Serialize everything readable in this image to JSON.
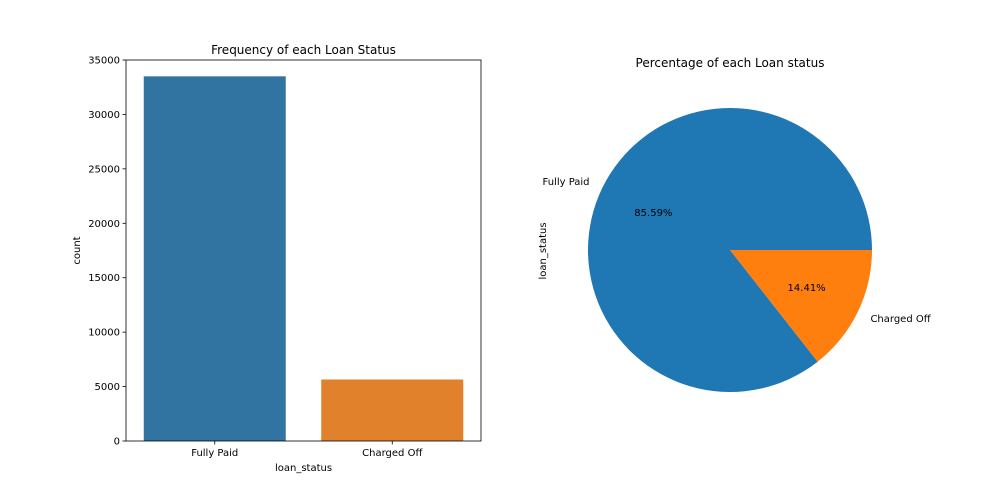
{
  "chart_data": [
    {
      "type": "bar",
      "title": "Frequency of each Loan Status",
      "xlabel": "loan_status",
      "ylabel": "count",
      "categories": [
        "Fully Paid",
        "Charged Off"
      ],
      "values": [
        33500,
        5650
      ],
      "colors": [
        "#3274a1",
        "#e1812c"
      ],
      "ylim": [
        0,
        35000
      ],
      "yticks": [
        0,
        5000,
        10000,
        15000,
        20000,
        25000,
        30000,
        35000
      ],
      "grid": false
    },
    {
      "type": "pie",
      "title": "Percentage of each Loan status",
      "ylabel": "loan_status",
      "labels": [
        "Fully Paid",
        "Charged Off"
      ],
      "values": [
        85.59,
        14.41
      ],
      "percent_labels": [
        "85.59%",
        "14.41%"
      ],
      "colors": [
        "#1f77b4",
        "#ff7f0e"
      ]
    }
  ]
}
